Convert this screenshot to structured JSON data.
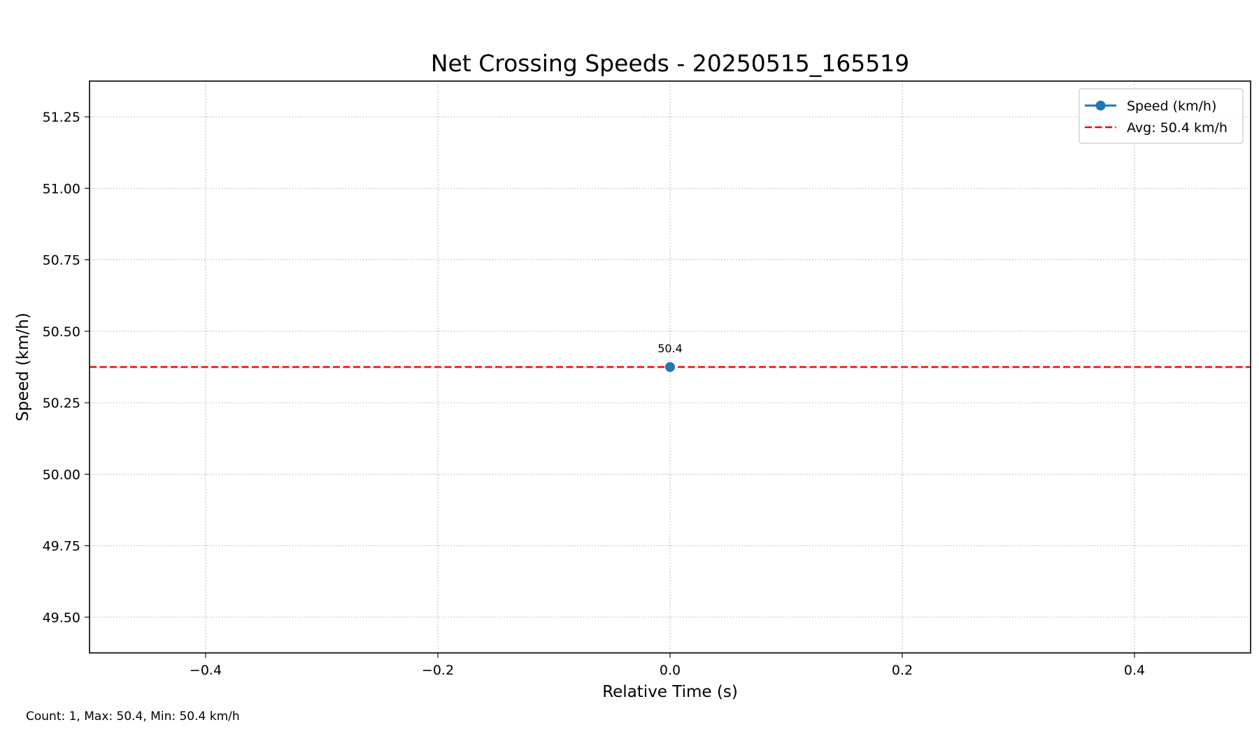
{
  "chart_data": {
    "type": "line",
    "title": "Net Crossing Speeds - 20250515_165519",
    "xlabel": "Relative Time (s)",
    "ylabel": "Speed (km/h)",
    "xlim": [
      -0.5,
      0.5
    ],
    "ylim": [
      49.375,
      51.375
    ],
    "x_ticks": [
      -0.4,
      -0.2,
      0.0,
      0.2,
      0.4
    ],
    "x_tick_labels": [
      "−0.4",
      "−0.2",
      "0.0",
      "0.2",
      "0.4"
    ],
    "y_ticks": [
      49.5,
      49.75,
      50.0,
      50.25,
      50.5,
      50.75,
      51.0,
      51.25
    ],
    "y_tick_labels": [
      "49.50",
      "49.75",
      "50.00",
      "50.25",
      "50.50",
      "50.75",
      "51.00",
      "51.25"
    ],
    "grid": true,
    "legend_position": "upper right",
    "series": [
      {
        "name": "Speed (km/h)",
        "x": [
          0.0
        ],
        "y": [
          50.375
        ],
        "color": "#1f77b4",
        "marker": "circle",
        "data_labels": [
          "50.4"
        ]
      }
    ],
    "reference_lines": [
      {
        "name": "Avg: 50.4 km/h",
        "y": 50.375,
        "color": "#ff0000",
        "style": "dashed"
      }
    ]
  },
  "footer": {
    "stats_text": "Count: 1, Max: 50.4, Min: 50.4 km/h"
  }
}
